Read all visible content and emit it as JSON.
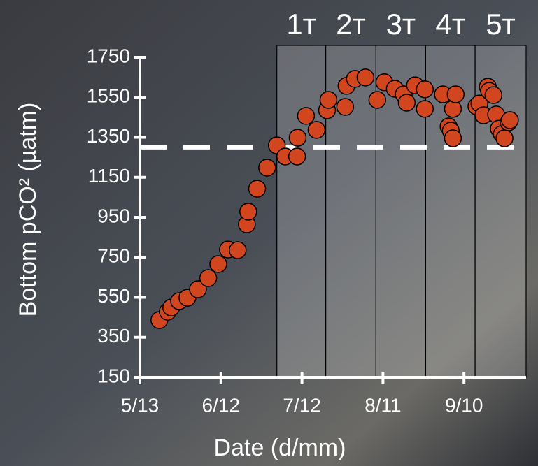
{
  "chart_data": {
    "type": "scatter",
    "xlabel": "Date (d/mm)",
    "ylabel": "Bottom pCO² (µatm)",
    "xlim": [
      0,
      143
    ],
    "xticks": [
      {
        "value": 0,
        "label": "5/13"
      },
      {
        "value": 30,
        "label": "6/12"
      },
      {
        "value": 60,
        "label": "7/12"
      },
      {
        "value": 90,
        "label": "8/11"
      },
      {
        "value": 120,
        "label": "9/10"
      }
    ],
    "ylim": [
      150,
      1750
    ],
    "yticks": [
      150,
      350,
      550,
      750,
      950,
      1150,
      1350,
      1550,
      1750
    ],
    "threshold": 1300,
    "periods": [
      {
        "label": "1ᴛ",
        "start": 50.7,
        "end": 68.8
      },
      {
        "label": "2ᴛ",
        "start": 68.8,
        "end": 87.4
      },
      {
        "label": "3ᴛ",
        "start": 87.4,
        "end": 105.8
      },
      {
        "label": "4ᴛ",
        "start": 105.8,
        "end": 124.1
      },
      {
        "label": "5ᴛ",
        "start": 124.1,
        "end": 143
      }
    ],
    "color": "#d2461f",
    "x": [
      7.2,
      10.3,
      11.6,
      14.5,
      17.6,
      21.5,
      25.3,
      29,
      32.6,
      36.2,
      39.6,
      40.1,
      43.4,
      47.1,
      50.7,
      53.8,
      58.2,
      58.4,
      61.5,
      65.4,
      69.3,
      69.8,
      76,
      76.5,
      79.6,
      83.5,
      87.9,
      90.5,
      94.4,
      97.7,
      98.8,
      101.9,
      105.5,
      105.5,
      112.2,
      115.9,
      116.9,
      114.3,
      115.1,
      115.9,
      124.6,
      125.7,
      127.2,
      128.8,
      129.3,
      130.9,
      131.9,
      132.9,
      134,
      135,
      136.5,
      137
    ],
    "values": [
      436,
      478,
      499,
      531,
      548,
      590,
      646,
      716,
      789,
      786,
      915,
      978,
      1093,
      1198,
      1310,
      1254,
      1254,
      1348,
      1457,
      1387,
      1485,
      1537,
      1502,
      1607,
      1642,
      1649,
      1537,
      1625,
      1593,
      1565,
      1523,
      1610,
      1492,
      1590,
      1565,
      1492,
      1565,
      1404,
      1383,
      1345,
      1505,
      1519,
      1460,
      1603,
      1582,
      1561,
      1464,
      1393,
      1366,
      1345,
      1425,
      1436
    ]
  }
}
